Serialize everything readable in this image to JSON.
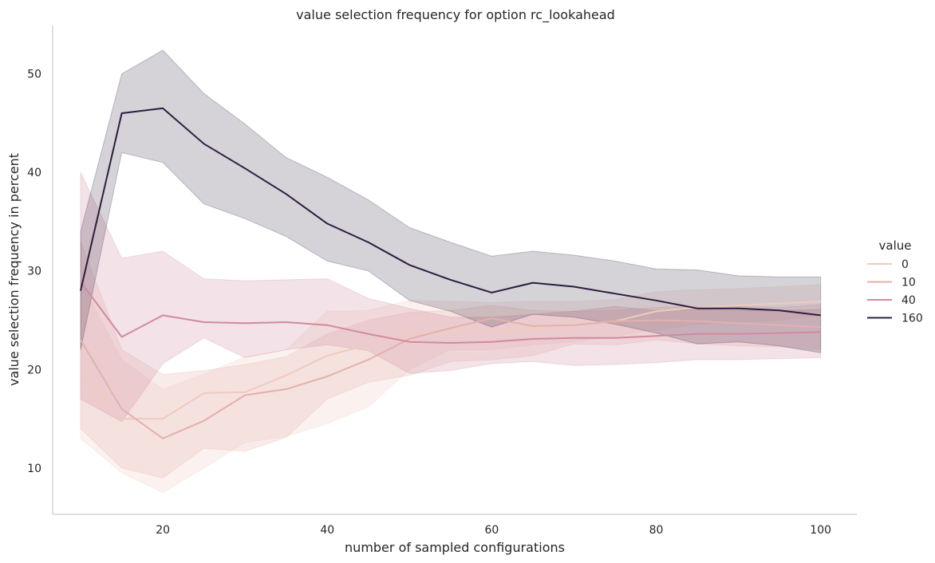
{
  "chart_data": {
    "type": "line",
    "title": "value selection frequency for option rc_lookahead",
    "xlabel": "number of sampled configurations",
    "ylabel": "value selection frequency in percent",
    "xlim": [
      6.6,
      104.4
    ],
    "ylim": [
      5.3,
      54.9
    ],
    "xticks": [
      20,
      40,
      60,
      80,
      100
    ],
    "yticks": [
      10,
      20,
      30,
      40,
      50
    ],
    "legend": {
      "title": "value",
      "placement": "right"
    },
    "x": [
      10,
      15,
      20,
      25,
      30,
      35,
      40,
      45,
      50,
      55,
      60,
      65,
      70,
      75,
      80,
      85,
      90,
      95,
      100
    ],
    "series": [
      {
        "name": "0",
        "color": "#eecbbf",
        "values": [
          20.0,
          15.0,
          15.0,
          17.6,
          17.7,
          19.4,
          21.4,
          22.5,
          23.6,
          24.0,
          24.0,
          24.1,
          24.6,
          24.9,
          25.9,
          26.3,
          26.5,
          26.7,
          26.9
        ],
        "lower": [
          13.0,
          9.5,
          7.5,
          10.0,
          12.6,
          13.2,
          14.5,
          16.2,
          20.0,
          22.0,
          22.0,
          22.5,
          22.8,
          23.4,
          24.0,
          24.6,
          24.8,
          25.0,
          25.5
        ],
        "upper": [
          29.0,
          21.0,
          18.0,
          19.5,
          21.3,
          22.0,
          25.9,
          26.0,
          27.0,
          26.9,
          26.8,
          26.9,
          26.9,
          27.1,
          27.9,
          28.1,
          28.2,
          28.4,
          28.6
        ]
      },
      {
        "name": "10",
        "color": "#e2b1ad",
        "values": [
          23.0,
          16.0,
          13.0,
          14.8,
          17.4,
          18.0,
          19.3,
          21.0,
          23.1,
          24.2,
          25.2,
          24.4,
          24.5,
          24.9,
          25.0,
          24.9,
          24.7,
          24.5,
          24.3
        ],
        "lower": [
          14.0,
          10.0,
          9.0,
          12.0,
          11.7,
          13.1,
          17.0,
          18.7,
          19.4,
          20.8,
          21.0,
          21.4,
          22.6,
          22.5,
          23.0,
          22.6,
          22.4,
          22.3,
          22.0
        ],
        "upper": [
          33.0,
          22.0,
          19.5,
          19.9,
          20.5,
          21.3,
          23.6,
          25.0,
          25.8,
          26.0,
          26.5,
          26.0,
          25.9,
          26.0,
          26.3,
          26.4,
          26.4,
          26.3,
          26.6
        ]
      },
      {
        "name": "40",
        "color": "#d18a9f",
        "values": [
          28.9,
          23.3,
          25.5,
          24.8,
          24.7,
          24.8,
          24.5,
          23.6,
          22.8,
          22.7,
          22.8,
          23.1,
          23.2,
          23.2,
          23.4,
          23.6,
          23.6,
          23.7,
          23.8
        ],
        "lower": [
          17.0,
          14.7,
          20.6,
          23.2,
          21.2,
          22.0,
          22.5,
          21.9,
          19.6,
          19.9,
          20.6,
          20.8,
          20.4,
          20.5,
          20.7,
          21.0,
          21.0,
          21.1,
          21.2
        ],
        "upper": [
          40.0,
          31.3,
          32.0,
          29.2,
          29.0,
          29.1,
          29.2,
          27.2,
          26.2,
          25.3,
          25.3,
          25.6,
          25.9,
          26.4,
          26.0,
          26.1,
          26.0,
          26.0,
          26.1
        ]
      },
      {
        "name": "160",
        "color": "#2d1e3e",
        "values": [
          28.0,
          46.0,
          46.5,
          42.9,
          40.4,
          37.8,
          34.8,
          32.9,
          30.6,
          29.1,
          27.8,
          28.8,
          28.4,
          27.7,
          27.0,
          26.2,
          26.2,
          26.0,
          25.5
        ],
        "lower": [
          22.0,
          42.0,
          41.0,
          36.8,
          35.3,
          33.5,
          31.0,
          30.0,
          27.0,
          25.9,
          24.3,
          25.6,
          25.3,
          24.6,
          23.7,
          22.6,
          22.8,
          22.4,
          21.7
        ],
        "upper": [
          34.0,
          50.0,
          52.4,
          48.0,
          44.9,
          41.5,
          39.5,
          37.2,
          34.4,
          32.9,
          31.5,
          32.0,
          31.6,
          31.0,
          30.2,
          30.1,
          29.5,
          29.4,
          29.4
        ]
      }
    ]
  }
}
